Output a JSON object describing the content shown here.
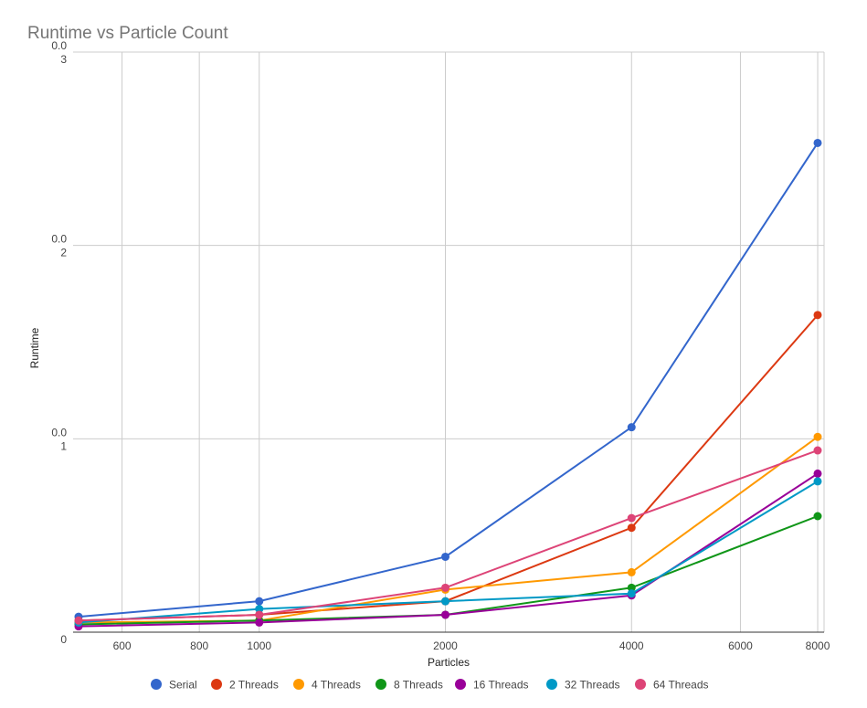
{
  "chart_data": {
    "type": "line",
    "title": "Runtime vs Particle Count",
    "xlabel": "Particles",
    "ylabel": "Runtime",
    "x_scale": "log",
    "xlim": [
      500,
      8192
    ],
    "ylim": [
      0,
      3
    ],
    "x_ticks": [
      "600",
      "800",
      "1000",
      "2000",
      "4000",
      "6000",
      "8000"
    ],
    "y_ticks": [
      {
        "value": 3,
        "label": "3",
        "sublabel": "0.0"
      },
      {
        "value": 2,
        "label": "2",
        "sublabel": "0.0"
      },
      {
        "value": 1,
        "label": "1",
        "sublabel": "0.0"
      },
      {
        "value": 0,
        "label": "0",
        "sublabel": ""
      }
    ],
    "grid": true,
    "legend_position": "bottom",
    "x": [
      500,
      1000,
      2000,
      4000,
      8000
    ],
    "series": [
      {
        "name": "Serial",
        "color": "#3366cc",
        "values": [
          0.08,
          0.16,
          0.39,
          1.06,
          2.53
        ]
      },
      {
        "name": "2 Threads",
        "color": "#dc3912",
        "values": [
          0.06,
          0.09,
          0.16,
          0.54,
          1.64
        ]
      },
      {
        "name": "4 Threads",
        "color": "#ff9900",
        "values": [
          0.05,
          0.06,
          0.22,
          0.31,
          1.01
        ]
      },
      {
        "name": "8 Threads",
        "color": "#109618",
        "values": [
          0.04,
          0.06,
          0.09,
          0.23,
          0.6
        ]
      },
      {
        "name": "16 Threads",
        "color": "#990099",
        "values": [
          0.03,
          0.05,
          0.09,
          0.19,
          0.82
        ]
      },
      {
        "name": "32 Threads",
        "color": "#0099c6",
        "values": [
          0.05,
          0.12,
          0.16,
          0.2,
          0.78
        ]
      },
      {
        "name": "64 Threads",
        "color": "#dd4477",
        "values": [
          0.06,
          0.09,
          0.23,
          0.59,
          0.94
        ]
      }
    ]
  }
}
